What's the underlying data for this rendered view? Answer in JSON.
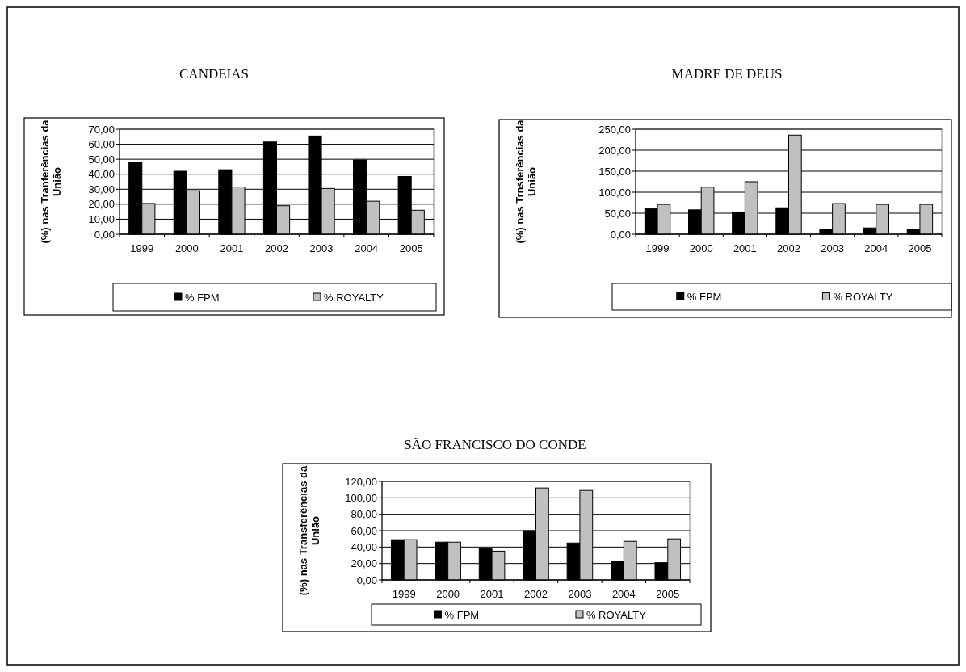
{
  "chart_data": [
    {
      "type": "bar",
      "title": "CANDEIAS",
      "ylabel": "(%)  nas Tranferências da União",
      "categories": [
        "1999",
        "2000",
        "2001",
        "2002",
        "2003",
        "2004",
        "2005"
      ],
      "series": [
        {
          "name": "% FPM",
          "color": "#000000",
          "values": [
            48,
            42,
            43,
            61.5,
            65.5,
            49.5,
            38.5
          ]
        },
        {
          "name": "% ROYALTY",
          "color": "#c0c0c0",
          "values": [
            20.5,
            29,
            31.5,
            19,
            30.5,
            22,
            16
          ]
        }
      ],
      "ylim": [
        0,
        70
      ],
      "yticks": [
        {
          "value": 0,
          "label": "0,00"
        },
        {
          "value": 10,
          "label": "10,00"
        },
        {
          "value": 20,
          "label": "20,00"
        },
        {
          "value": 30,
          "label": "30,00"
        },
        {
          "value": 40,
          "label": "40,00"
        },
        {
          "value": 50,
          "label": "50,00"
        },
        {
          "value": 60,
          "label": "60,00"
        },
        {
          "value": 70,
          "label": "70,00"
        }
      ],
      "grid": "y",
      "legend": "bottom"
    },
    {
      "type": "bar",
      "title": "MADRE DE DEUS",
      "ylabel": "(%) nas Trnsferências da União",
      "categories": [
        "1999",
        "2000",
        "2001",
        "2002",
        "2003",
        "2004",
        "2005"
      ],
      "series": [
        {
          "name": "% FPM",
          "color": "#000000",
          "values": [
            61,
            58,
            53,
            63,
            12,
            15,
            12
          ]
        },
        {
          "name": "% ROYALTY",
          "color": "#c0c0c0",
          "values": [
            71,
            112,
            125,
            236,
            73,
            71,
            71
          ]
        }
      ],
      "ylim": [
        0,
        250
      ],
      "yticks": [
        {
          "value": 0,
          "label": "0,00"
        },
        {
          "value": 50,
          "label": "50,00"
        },
        {
          "value": 100,
          "label": "100,00"
        },
        {
          "value": 150,
          "label": "150,00"
        },
        {
          "value": 200,
          "label": "200,00"
        },
        {
          "value": 250,
          "label": "250,00"
        }
      ],
      "grid": "y",
      "legend": "bottom"
    },
    {
      "type": "bar",
      "title": "SÃO FRANCISCO DO CONDE",
      "ylabel": "(%) nas Transferências da União",
      "categories": [
        "1999",
        "2000",
        "2001",
        "2002",
        "2003",
        "2004",
        "2005"
      ],
      "series": [
        {
          "name": "% FPM",
          "color": "#000000",
          "values": [
            49,
            46,
            38,
            60,
            45,
            23,
            21
          ]
        },
        {
          "name": "% ROYALTY",
          "color": "#c0c0c0",
          "values": [
            49,
            46,
            35,
            112,
            109,
            47,
            50
          ]
        }
      ],
      "ylim": [
        0,
        120
      ],
      "yticks": [
        {
          "value": 0,
          "label": "0,00"
        },
        {
          "value": 20,
          "label": "20,00"
        },
        {
          "value": 40,
          "label": "40,00"
        },
        {
          "value": 60,
          "label": "60,00"
        },
        {
          "value": 80,
          "label": "80,00"
        },
        {
          "value": 100,
          "label": "100,00"
        },
        {
          "value": 120,
          "label": "120,00"
        }
      ],
      "grid": "y",
      "legend": "bottom"
    }
  ]
}
